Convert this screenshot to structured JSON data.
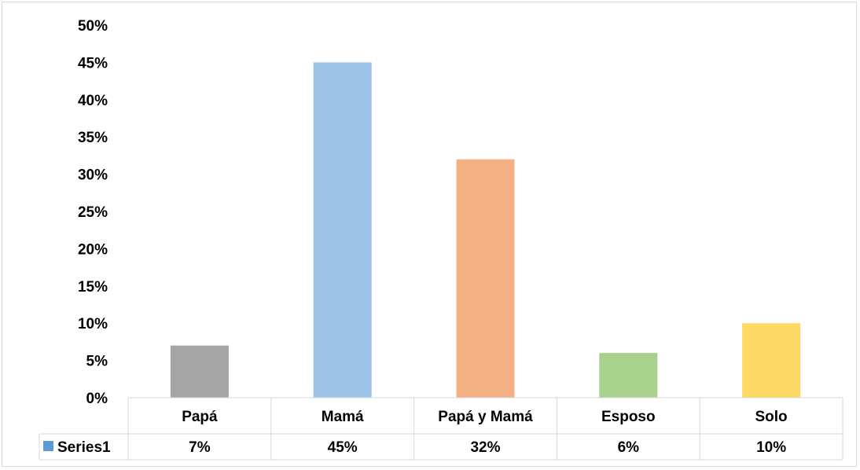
{
  "chart_data": {
    "type": "bar",
    "categories": [
      "Papá",
      "Mamá",
      "Papá y Mamá",
      "Esposo",
      "Solo"
    ],
    "series": [
      {
        "name": "Series1",
        "values": [
          7,
          45,
          32,
          6,
          10
        ],
        "value_labels": [
          "7%",
          "45%",
          "32%",
          "6%",
          "10%"
        ]
      }
    ],
    "bar_colors": [
      "#a5a5a5",
      "#9dc3e6",
      "#f4b183",
      "#a9d18e",
      "#ffd966"
    ],
    "legend_marker_color": "#5b9bd5",
    "y_ticks": [
      "0%",
      "5%",
      "10%",
      "15%",
      "20%",
      "25%",
      "30%",
      "35%",
      "40%",
      "45%",
      "50%"
    ],
    "ylim": [
      0,
      50
    ],
    "y_unit": "%",
    "grid": false,
    "data_table": true,
    "title": "",
    "xlabel": "",
    "ylabel": ""
  }
}
